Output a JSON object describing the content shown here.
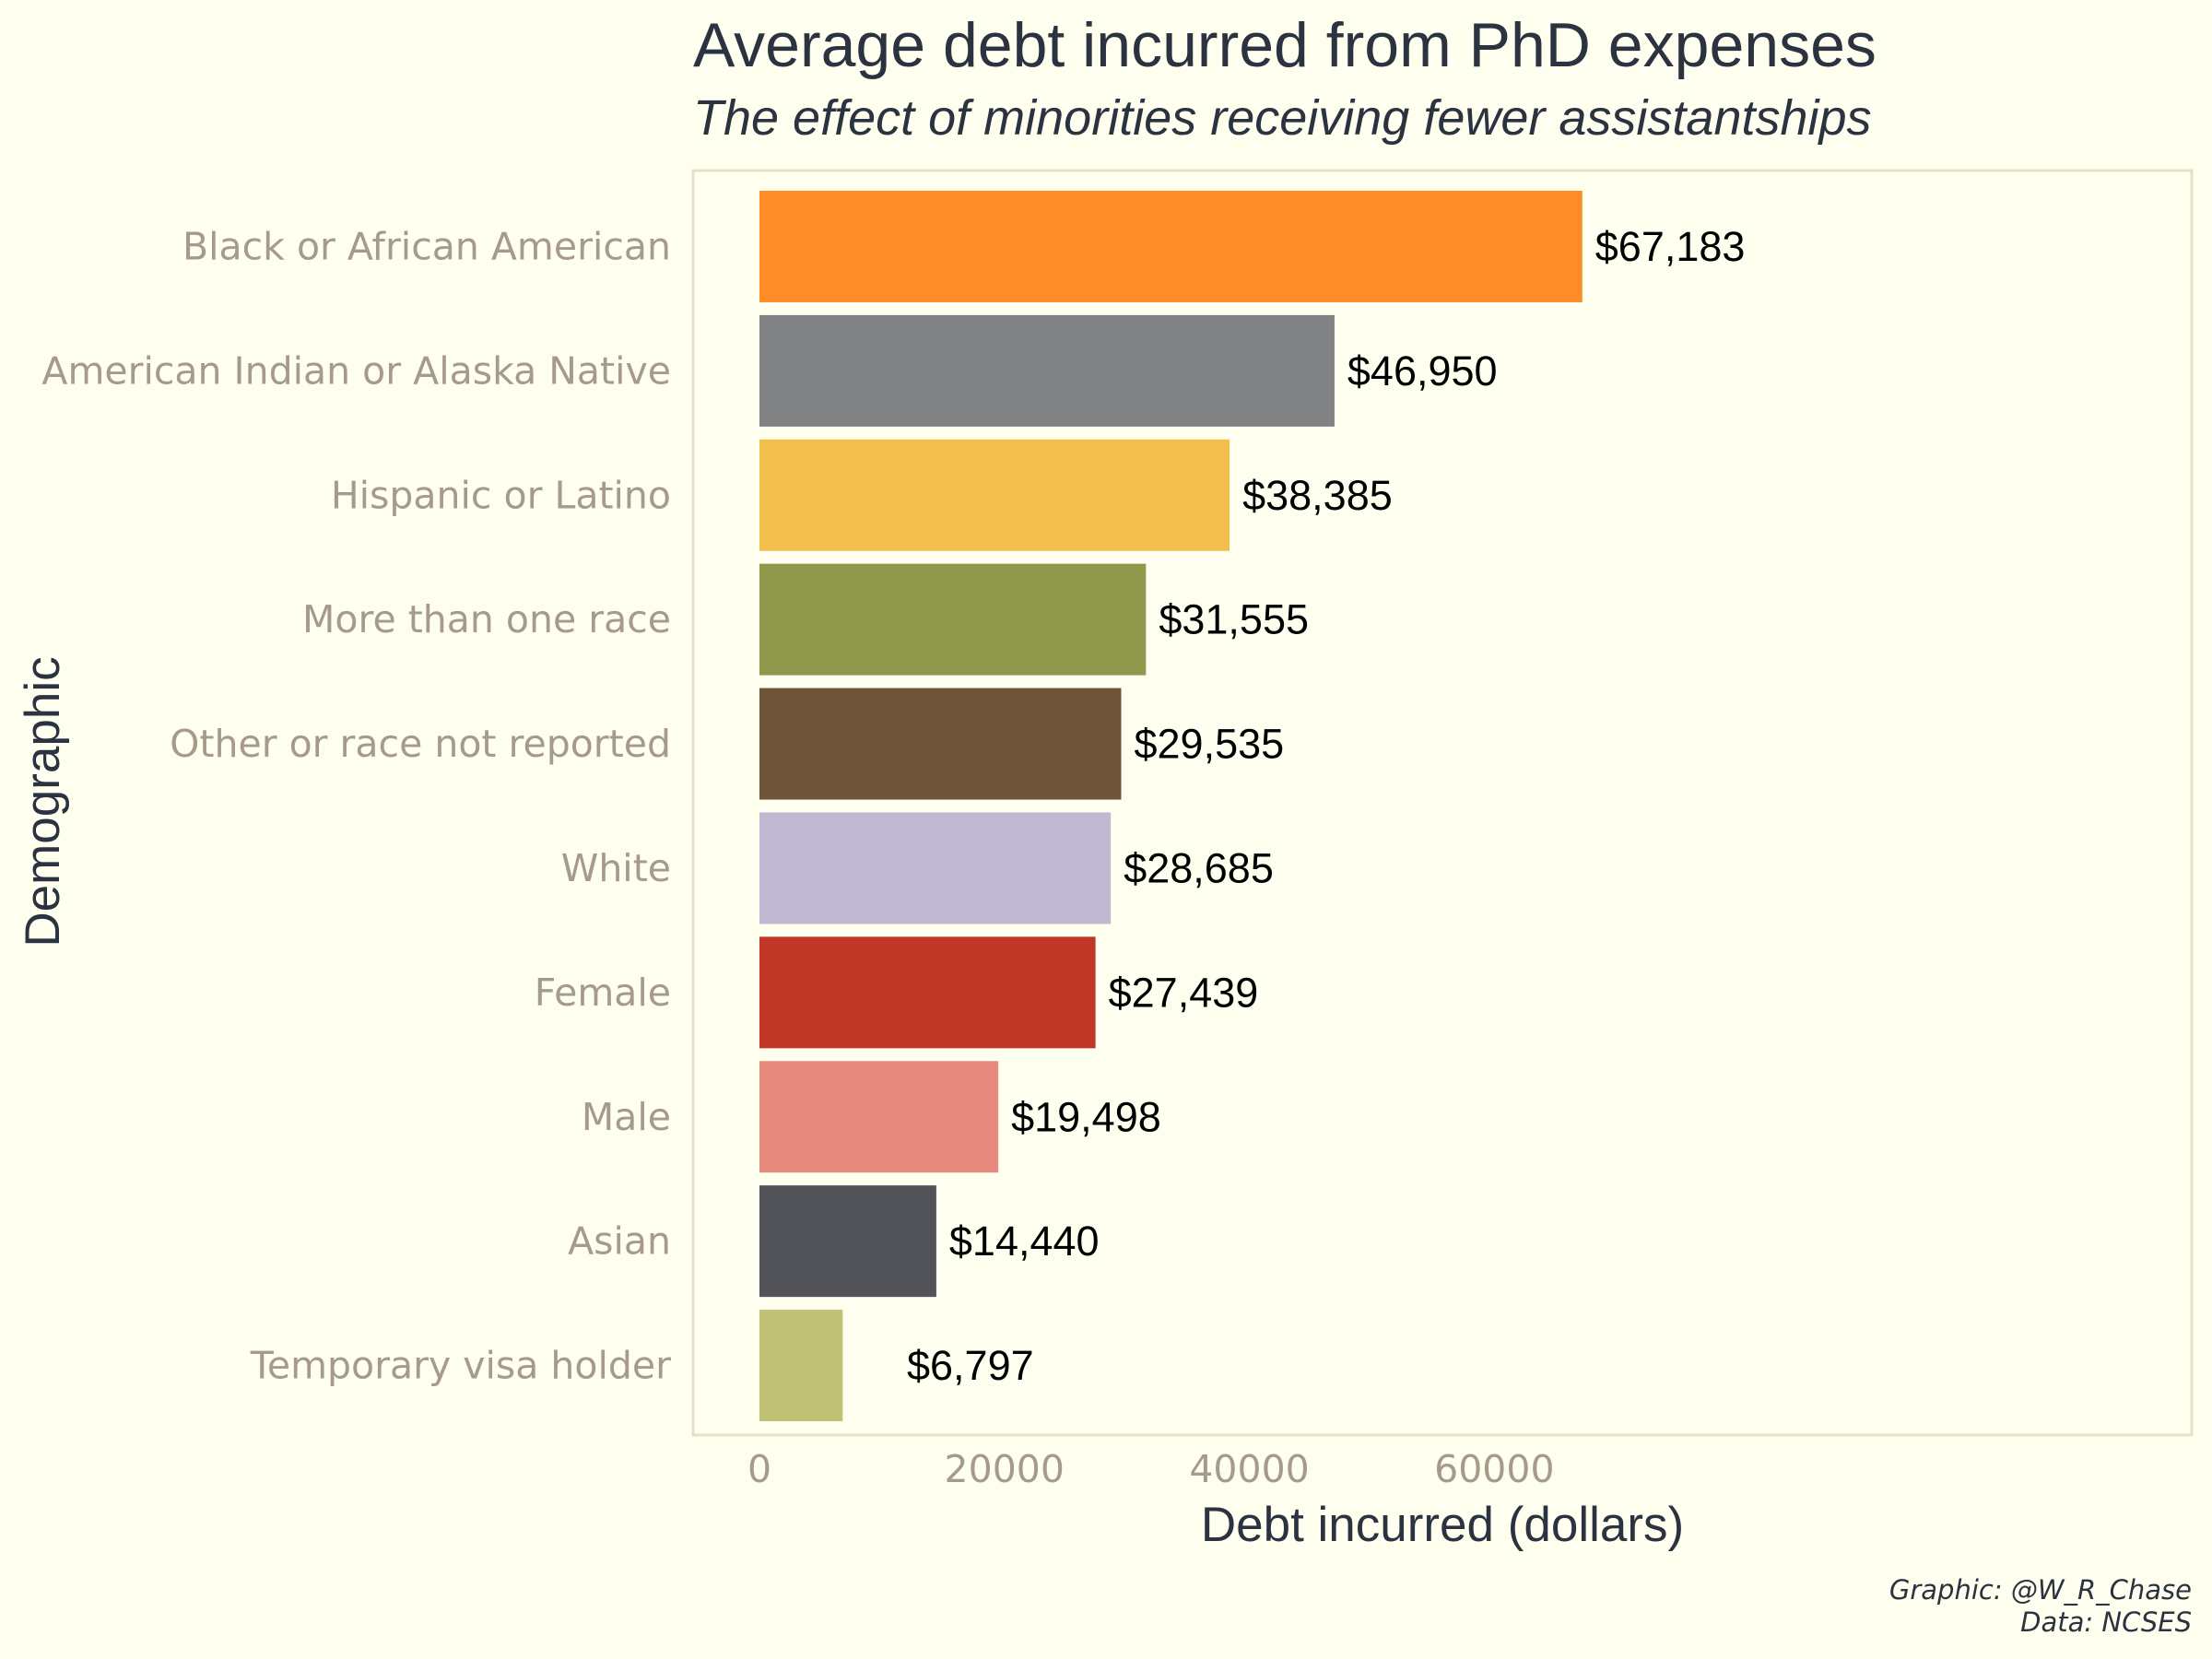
{
  "chart_data": {
    "type": "bar",
    "orientation": "horizontal",
    "title": "Average debt incurred from PhD expenses",
    "subtitle": "The effect of minorities receiving fewer assistantships",
    "xlabel": "Debt incurred (dollars)",
    "ylabel": "Demographic",
    "xlim": [
      0,
      75000
    ],
    "x_ticks": [
      0,
      20000,
      40000,
      60000
    ],
    "x_tick_labels": [
      "0",
      "20000",
      "40000",
      "60000"
    ],
    "grid": false,
    "legend": "none",
    "categories": [
      "Black or African American",
      "American Indian or Alaska Native",
      "Hispanic or Latino",
      "More than one race",
      "Other or race not reported",
      "White",
      "Female",
      "Male",
      "Asian",
      "Temporary visa holder"
    ],
    "values": [
      67183,
      46950,
      38385,
      31555,
      29535,
      28685,
      27439,
      19498,
      14440,
      6797
    ],
    "value_labels": [
      "$67,183",
      "$46,950",
      "$38,385",
      "$31,555",
      "$29,535",
      "$28,685",
      "$27,439",
      "$19,498",
      "$14,440",
      "$6,797"
    ],
    "colors": [
      "#ff8c26",
      "#808283",
      "#f2bf4d",
      "#919a4c",
      "#6d5438",
      "#bfb8d0",
      "#c03728",
      "#e58a7c",
      "#525359",
      "#c2c276"
    ],
    "caption_lines": [
      "Graphic: @W_R_Chase",
      "Data: NCSES"
    ]
  },
  "theme": {
    "background": "#fffff0",
    "panel_border": "#e8e0c6",
    "title_color": "#2b3240",
    "category_label_color": "#a69a8a",
    "tick_label_color": "#a69a8a",
    "axis_title_color": "#2b3240",
    "value_label_color": "#000000"
  }
}
